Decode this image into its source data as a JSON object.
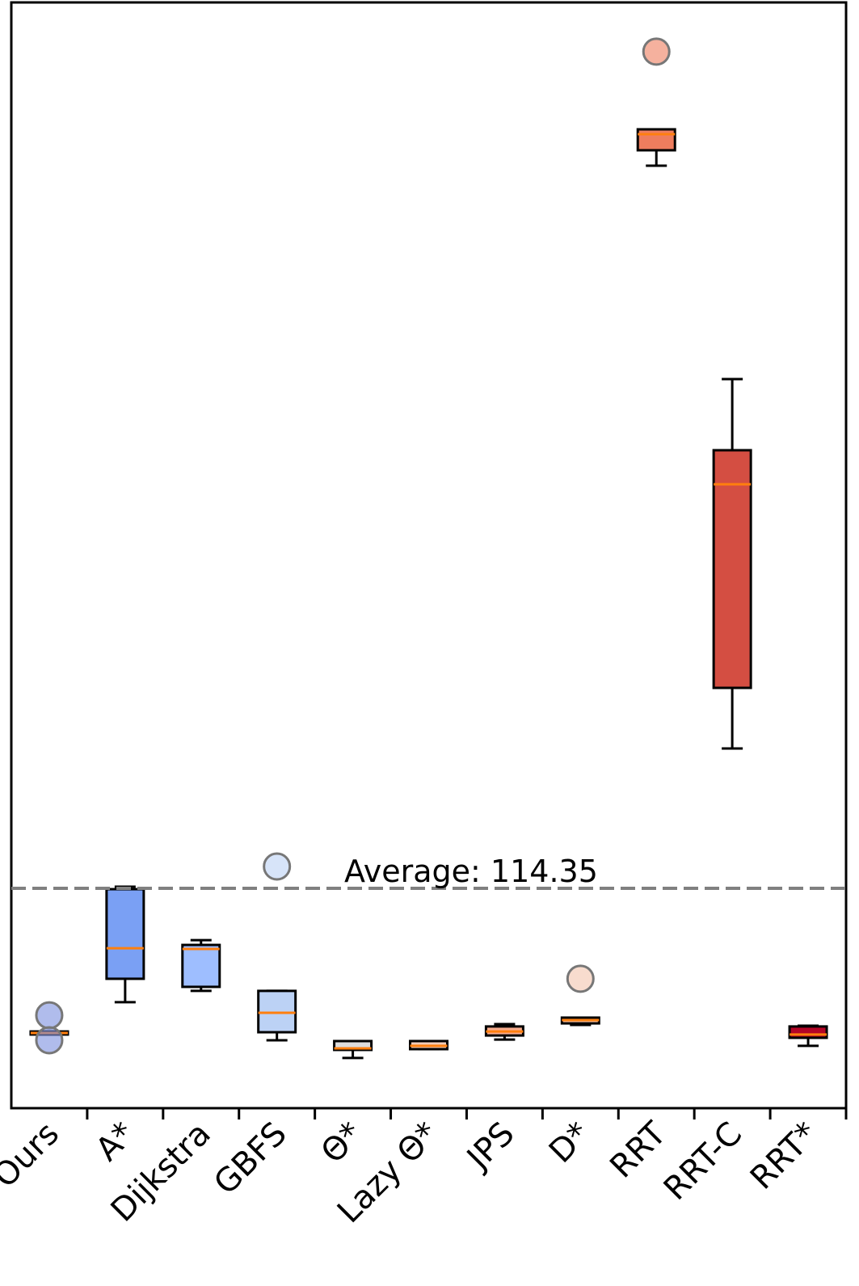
{
  "chart_data": {
    "type": "box",
    "categories": [
      "Ours",
      "A*",
      "Dijkstra",
      "GBFS",
      "Θ*",
      "Lazy Θ*",
      "JPS",
      "D*",
      "RRT",
      "RRT-C",
      "RRT*"
    ],
    "boxes": [
      {
        "whislo": 38.3,
        "q1": 38.3,
        "median": 39.1,
        "q3": 39.9,
        "whishi": 39.9,
        "fliers": [
          48.3,
          35.3
        ],
        "color": "#7b8fe0"
      },
      {
        "whislo": 55.1,
        "q1": 67.3,
        "median": 83.2,
        "q3": 113.9,
        "whishi": 115.2,
        "fliers": [],
        "color": "#7aa0f4"
      },
      {
        "whislo": 61.0,
        "q1": 63.1,
        "median": 82.8,
        "q3": 84.9,
        "whishi": 87.4,
        "fliers": [],
        "color": "#9ebeff"
      },
      {
        "whislo": 35.3,
        "q1": 39.5,
        "median": 49.6,
        "q3": 61.0,
        "whishi": 61.0,
        "fliers": [
          125.7
        ],
        "color": "#bcd2f5"
      },
      {
        "whislo": 26.1,
        "q1": 30.3,
        "median": 31.1,
        "q3": 34.9,
        "whishi": 34.9,
        "fliers": [],
        "color": "#dddcdc"
      },
      {
        "whislo": 30.7,
        "q1": 30.7,
        "median": 32.4,
        "q3": 34.9,
        "whishi": 34.9,
        "fliers": [],
        "color": "#f2cbb7"
      },
      {
        "whislo": 35.7,
        "q1": 37.8,
        "median": 39.9,
        "q3": 42.5,
        "whishi": 43.7,
        "fliers": [],
        "color": "#f7ac8e"
      },
      {
        "whislo": 43.3,
        "q1": 44.1,
        "median": 45.8,
        "q3": 47.1,
        "whishi": 47.1,
        "fliers": [
          67.3
        ],
        "color": "#f4c4ae"
      },
      {
        "whislo": 490.2,
        "q1": 498.2,
        "median": 506.6,
        "q3": 509.1,
        "whishi": 509.1,
        "fliers": [
          549.5
        ],
        "color": "#ee7d5e"
      },
      {
        "whislo": 187.1,
        "q1": 218.6,
        "median": 324.5,
        "q3": 342.2,
        "whishi": 379.2,
        "fliers": [],
        "color": "#d44e42"
      },
      {
        "whislo": 32.4,
        "q1": 36.6,
        "median": 38.3,
        "q3": 42.5,
        "whishi": 42.9,
        "fliers": [],
        "color": "#b40426"
      }
    ],
    "median_color": "#ff7f0e",
    "average": 114.35,
    "average_label": "Average: 114.35",
    "average_color": "#808080",
    "ylim": [
      0,
      575.1
    ]
  }
}
